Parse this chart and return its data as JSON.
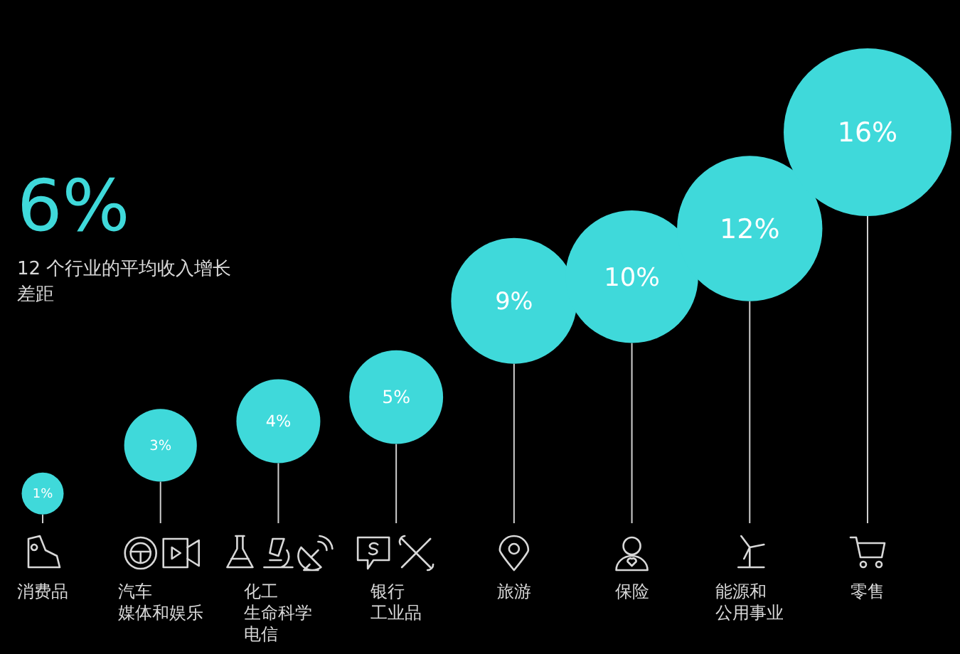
{
  "chart_data": {
    "type": "other",
    "title": "6%",
    "subtitle": "12 个行业的平均收入增长差距",
    "categories": [
      "消费品",
      "汽车",
      "化工",
      "银行",
      "旅游",
      "保险",
      "能源和",
      "零售"
    ],
    "values": [
      1,
      3,
      4,
      5,
      9,
      10,
      12,
      16
    ],
    "value_labels": [
      "1%",
      "3%",
      "4%",
      "5%",
      "9%",
      "10%",
      "12%",
      "16%"
    ],
    "annotations": [
      "媒体和娱乐",
      "生命科学",
      "电信",
      "工业品",
      "公用事业"
    ],
    "color": "#3fd9da"
  }
}
